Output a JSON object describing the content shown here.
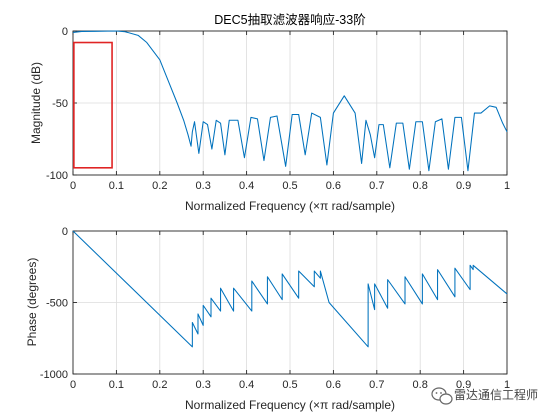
{
  "chart_data": [
    {
      "type": "line",
      "title": "DEC5抽取滤波器响应-33阶",
      "xlabel": "Normalized Frequency  (×π rad/sample)",
      "ylabel": "Magnitude (dB)",
      "xlim": [
        0,
        1
      ],
      "ylim": [
        -100,
        0
      ],
      "xticks": [
        "0",
        "0.1",
        "0.2",
        "0.3",
        "0.4",
        "0.5",
        "0.6",
        "0.7",
        "0.8",
        "0.9",
        "1"
      ],
      "yticks": [
        "0",
        "-50",
        "-100"
      ],
      "grid": true,
      "series": [
        {
          "color": "#0072bd",
          "x": [
            0,
            0.02,
            0.05,
            0.08,
            0.1,
            0.12,
            0.15,
            0.17,
            0.2,
            0.22,
            0.24,
            0.255,
            0.265,
            0.272,
            0.275,
            0.28,
            0.29,
            0.3,
            0.31,
            0.32,
            0.33,
            0.34,
            0.35,
            0.36,
            0.38,
            0.395,
            0.41,
            0.425,
            0.44,
            0.455,
            0.47,
            0.49,
            0.505,
            0.52,
            0.535,
            0.55,
            0.57,
            0.585,
            0.6,
            0.625,
            0.65,
            0.665,
            0.675,
            0.685,
            0.695,
            0.705,
            0.715,
            0.73,
            0.745,
            0.76,
            0.775,
            0.79,
            0.805,
            0.82,
            0.835,
            0.85,
            0.865,
            0.88,
            0.895,
            0.91,
            0.925,
            0.94,
            0.96,
            0.975,
            0.99,
            1.0
          ],
          "values": [
            -1,
            -0.3,
            -0.2,
            -0.1,
            0,
            -0.5,
            -3,
            -8,
            -20,
            -35,
            -50,
            -62,
            -72,
            -80,
            -70,
            -63,
            -85,
            -63,
            -65,
            -82,
            -62,
            -64,
            -86,
            -62,
            -62,
            -88,
            -60,
            -61,
            -90,
            -60,
            -59,
            -94,
            -58,
            -58,
            -86,
            -57,
            -60,
            -93,
            -57,
            -45,
            -57,
            -92,
            -62,
            -72,
            -88,
            -65,
            -65,
            -95,
            -64,
            -64,
            -96,
            -63,
            -63,
            -97,
            -63,
            -61,
            -96,
            -60,
            -60,
            -97,
            -57,
            -57,
            -52,
            -53,
            -64,
            -70
          ]
        }
      ],
      "annotations": [
        {
          "type": "rectangle",
          "color": "#e02424",
          "x": [
            0.002,
            0.09
          ],
          "y": [
            -95,
            -8
          ]
        }
      ]
    },
    {
      "type": "line",
      "title": "",
      "xlabel": "Normalized Frequency  (×π rad/sample)",
      "ylabel": "Phase (degrees)",
      "xlim": [
        0,
        1
      ],
      "ylim": [
        -1000,
        0
      ],
      "xticks": [
        "0",
        "0.1",
        "0.2",
        "0.3",
        "0.4",
        "0.5",
        "0.6",
        "0.7",
        "0.8",
        "0.9",
        "1"
      ],
      "yticks": [
        "0",
        "-500",
        "-1000"
      ],
      "grid": true,
      "series": [
        {
          "color": "#0072bd",
          "x": [
            0,
            0.275,
            0.275,
            0.288,
            0.288,
            0.3,
            0.3,
            0.318,
            0.318,
            0.34,
            0.34,
            0.37,
            0.37,
            0.412,
            0.412,
            0.448,
            0.448,
            0.482,
            0.482,
            0.52,
            0.52,
            0.556,
            0.556,
            0.57,
            0.57,
            0.59,
            0.59,
            0.68,
            0.68,
            0.695,
            0.695,
            0.725,
            0.725,
            0.765,
            0.765,
            0.805,
            0.805,
            0.84,
            0.84,
            0.88,
            0.88,
            0.915,
            0.915,
            0.922,
            0.922,
            1.0
          ],
          "values": [
            0,
            -810,
            -640,
            -720,
            -580,
            -660,
            -520,
            -600,
            -470,
            -560,
            -400,
            -560,
            -400,
            -560,
            -350,
            -510,
            -320,
            -480,
            -300,
            -470,
            -280,
            -390,
            -280,
            -330,
            -280,
            -500,
            -500,
            -810,
            -370,
            -550,
            -370,
            -540,
            -340,
            -510,
            -320,
            -510,
            -300,
            -480,
            -270,
            -460,
            -260,
            -410,
            -240,
            -270,
            -240,
            -440
          ]
        }
      ]
    }
  ],
  "watermark": {
    "icon": "wechat-icon",
    "text": "雷达通信工程师"
  }
}
